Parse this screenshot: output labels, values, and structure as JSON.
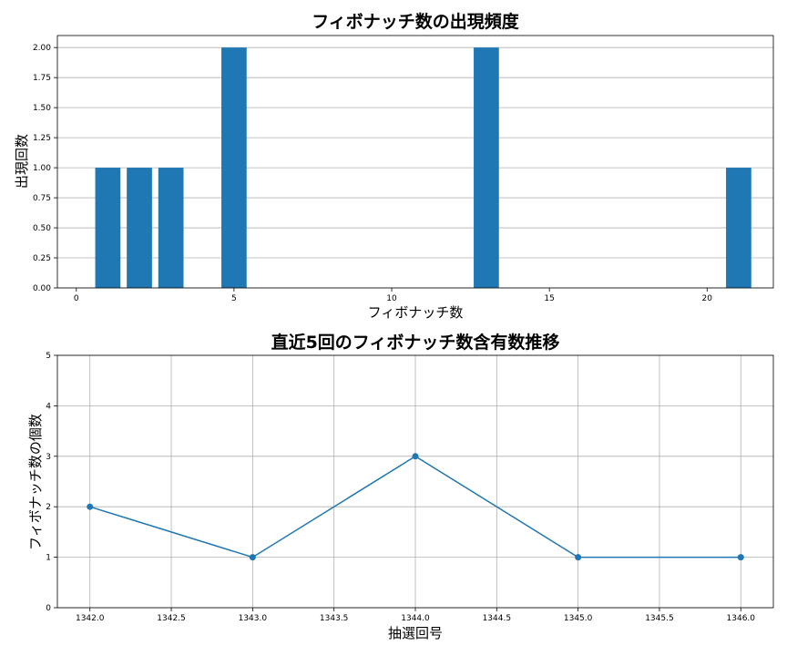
{
  "chart_data": [
    {
      "type": "bar",
      "title": "フィボナッチ数の出現頻度",
      "xlabel": "フィボナッチ数",
      "ylabel": "出現回数",
      "x": [
        1,
        2,
        3,
        5,
        13,
        21
      ],
      "values": [
        1,
        1,
        1,
        2,
        2,
        1
      ],
      "xlim": [
        -0.6,
        22.1
      ],
      "ylim": [
        0,
        2.1
      ],
      "xticks": [
        0,
        5,
        10,
        15,
        20
      ],
      "yticks": [
        0.0,
        0.25,
        0.5,
        0.75,
        1.0,
        1.25,
        1.5,
        1.75,
        2.0
      ],
      "ytick_labels": [
        "0.00",
        "0.25",
        "0.50",
        "0.75",
        "1.00",
        "1.25",
        "1.50",
        "1.75",
        "2.00"
      ],
      "grid": "y",
      "color": "#1f77b4"
    },
    {
      "type": "line",
      "title": "直近5回のフィボナッチ数含有数推移",
      "xlabel": "抽選回号",
      "ylabel": "フィボナッチ数の個数",
      "x": [
        1342,
        1343,
        1344,
        1345,
        1346
      ],
      "values": [
        2,
        1,
        3,
        1,
        1
      ],
      "xlim": [
        1341.8,
        1346.2
      ],
      "ylim": [
        0,
        5
      ],
      "xticks": [
        1342.0,
        1342.5,
        1343.0,
        1343.5,
        1344.0,
        1344.5,
        1345.0,
        1345.5,
        1346.0
      ],
      "xtick_labels": [
        "1342.0",
        "1342.5",
        "1343.0",
        "1343.5",
        "1344.0",
        "1344.5",
        "1345.0",
        "1345.5",
        "1346.0"
      ],
      "yticks": [
        0,
        1,
        2,
        3,
        4,
        5
      ],
      "grid": "both",
      "marker": "circle",
      "color": "#1f77b4"
    }
  ]
}
